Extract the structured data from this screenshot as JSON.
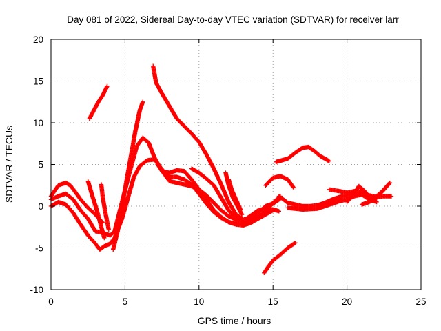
{
  "chart_data": {
    "type": "scatter",
    "title": "Day 081 of 2022, Sidereal Day-to-day VTEC variation (SDTVAR) for receiver larr",
    "xlabel": "GPS time / hours",
    "ylabel": "SDTVAR / TECUs",
    "xlim": [
      0,
      25
    ],
    "ylim": [
      -10,
      20
    ],
    "xticks": [
      0,
      5,
      10,
      15,
      20,
      25
    ],
    "yticks": [
      -10,
      -5,
      0,
      5,
      10,
      15,
      20
    ],
    "xtick_labels": [
      "0",
      "5",
      "10",
      "15",
      "20",
      "25"
    ],
    "ytick_labels": [
      "-10",
      "-5",
      "0",
      "5",
      "10",
      "15",
      "20"
    ],
    "grid": true,
    "marker": "+",
    "color": "#ff0000",
    "series": [
      {
        "name": "s1",
        "points": [
          [
            0.0,
            0.8
          ],
          [
            0.5,
            1.2
          ],
          [
            1.0,
            1.5
          ],
          [
            1.5,
            0.8
          ],
          [
            2.0,
            -0.5
          ],
          [
            2.5,
            -1.5
          ],
          [
            3.0,
            -3.0
          ],
          [
            3.5,
            -3.2
          ],
          [
            4.0,
            -3.5
          ],
          [
            4.3,
            -3.0
          ],
          [
            4.8,
            0.5
          ],
          [
            5.3,
            4.0
          ],
          [
            5.8,
            7.2
          ],
          [
            6.2,
            8.2
          ],
          [
            6.6,
            7.6
          ],
          [
            7.0,
            5.8
          ],
          [
            7.5,
            4.2
          ],
          [
            8.0,
            4.0
          ],
          [
            8.5,
            4.3
          ],
          [
            9.0,
            4.2
          ],
          [
            9.5,
            3.2
          ],
          [
            10.0,
            2.0
          ],
          [
            10.5,
            0.8
          ],
          [
            11.0,
            -0.5
          ],
          [
            11.5,
            -1.3
          ],
          [
            12.0,
            -1.9
          ],
          [
            12.5,
            -2.1
          ],
          [
            13.0,
            -2.1
          ],
          [
            13.5,
            -1.8
          ],
          [
            14.0,
            -1.4
          ]
        ]
      },
      {
        "name": "s2",
        "points": [
          [
            0.0,
            0.0
          ],
          [
            0.5,
            0.5
          ],
          [
            1.0,
            0.2
          ],
          [
            1.5,
            -0.8
          ],
          [
            2.0,
            -2.2
          ],
          [
            2.5,
            -3.5
          ],
          [
            3.0,
            -4.5
          ],
          [
            3.3,
            -5.2
          ],
          [
            3.6,
            -4.8
          ],
          [
            4.0,
            -4.5
          ],
          [
            4.3,
            -3.8
          ],
          [
            4.8,
            -1.5
          ],
          [
            5.2,
            1.0
          ],
          [
            5.6,
            3.5
          ],
          [
            6.0,
            4.8
          ],
          [
            6.5,
            5.5
          ],
          [
            7.0,
            5.6
          ],
          [
            7.5,
            4.4
          ],
          [
            8.0,
            3.5
          ],
          [
            8.5,
            3.5
          ],
          [
            9.0,
            3.2
          ],
          [
            9.5,
            2.6
          ],
          [
            10.0,
            1.5
          ],
          [
            10.5,
            0.3
          ],
          [
            11.0,
            -0.7
          ],
          [
            11.5,
            -1.4
          ],
          [
            12.0,
            -1.9
          ],
          [
            12.5,
            -2.2
          ],
          [
            13.0,
            -2.3
          ],
          [
            13.5,
            -2.0
          ],
          [
            14.0,
            -1.5
          ],
          [
            14.5,
            -1.0
          ],
          [
            15.0,
            -0.5
          ]
        ]
      },
      {
        "name": "s3",
        "points": [
          [
            4.2,
            -5.2
          ],
          [
            4.5,
            -3.0
          ],
          [
            4.8,
            0.0
          ],
          [
            5.1,
            3.0
          ],
          [
            5.4,
            6.0
          ],
          [
            5.7,
            9.0
          ],
          [
            6.0,
            11.5
          ],
          [
            6.2,
            12.5
          ]
        ]
      },
      {
        "name": "s4",
        "points": [
          [
            2.6,
            10.5
          ],
          [
            2.9,
            11.5
          ],
          [
            3.2,
            12.5
          ],
          [
            3.5,
            13.3
          ],
          [
            3.8,
            14.4
          ]
        ]
      },
      {
        "name": "s5",
        "points": [
          [
            6.9,
            16.8
          ],
          [
            7.1,
            14.8
          ],
          [
            7.5,
            13.5
          ],
          [
            8.0,
            12.0
          ],
          [
            8.5,
            10.5
          ],
          [
            9.0,
            9.6
          ],
          [
            9.5,
            8.7
          ],
          [
            10.0,
            7.7
          ],
          [
            10.5,
            6.2
          ],
          [
            11.0,
            4.5
          ],
          [
            11.5,
            2.6
          ],
          [
            12.0,
            0.5
          ],
          [
            12.5,
            -1.0
          ],
          [
            13.0,
            -1.6
          ],
          [
            13.5,
            -1.5
          ]
        ]
      },
      {
        "name": "s6",
        "points": [
          [
            7.2,
            5.0
          ],
          [
            7.6,
            4.0
          ],
          [
            8.0,
            3.0
          ],
          [
            8.5,
            2.8
          ],
          [
            9.0,
            2.6
          ],
          [
            9.5,
            2.4
          ],
          [
            10.0,
            2.0
          ],
          [
            10.5,
            1.3
          ],
          [
            11.0,
            0.4
          ],
          [
            11.5,
            -0.5
          ],
          [
            12.0,
            -1.2
          ],
          [
            12.5,
            -1.6
          ],
          [
            13.0,
            -1.8
          ],
          [
            13.5,
            -1.6
          ],
          [
            14.0,
            -1.3
          ],
          [
            14.5,
            -0.6
          ],
          [
            15.0,
            0.4
          ],
          [
            15.5,
            1.2
          ]
        ]
      },
      {
        "name": "s7",
        "points": [
          [
            9.5,
            4.5
          ],
          [
            10.0,
            4.0
          ],
          [
            10.5,
            3.3
          ],
          [
            11.0,
            2.5
          ],
          [
            11.5,
            1.0
          ],
          [
            12.0,
            -0.5
          ],
          [
            12.5,
            -1.5
          ],
          [
            13.0,
            -1.7
          ],
          [
            13.5,
            -1.4
          ],
          [
            14.0,
            -0.8
          ],
          [
            14.5,
            0.0
          ],
          [
            15.0,
            0.3
          ],
          [
            15.5,
            0.9
          ]
        ]
      },
      {
        "name": "s8",
        "points": [
          [
            0.0,
            1.2
          ],
          [
            0.5,
            2.5
          ],
          [
            1.0,
            2.8
          ],
          [
            1.3,
            2.5
          ],
          [
            1.6,
            1.8
          ],
          [
            2.0,
            0.8
          ],
          [
            2.5,
            -0.2
          ],
          [
            3.0,
            -1.0
          ],
          [
            3.5,
            -2.0
          ]
        ]
      },
      {
        "name": "s9",
        "points": [
          [
            2.5,
            3.0
          ],
          [
            2.8,
            1.2
          ],
          [
            3.1,
            -0.5
          ],
          [
            3.4,
            -2.5
          ],
          [
            3.6,
            -3.8
          ]
        ]
      },
      {
        "name": "s10",
        "points": [
          [
            3.4,
            2.6
          ],
          [
            3.5,
            1.0
          ],
          [
            3.7,
            -1.0
          ],
          [
            3.9,
            -2.8
          ]
        ]
      },
      {
        "name": "s11",
        "points": [
          [
            11.8,
            4.0
          ],
          [
            12.0,
            2.5
          ],
          [
            12.3,
            1.0
          ],
          [
            12.6,
            0.0
          ],
          [
            12.9,
            -1.0
          ]
        ]
      },
      {
        "name": "s12",
        "points": [
          [
            12.0,
            3.2
          ],
          [
            12.2,
            2.0
          ],
          [
            12.5,
            0.8
          ],
          [
            12.8,
            -0.4
          ]
        ]
      },
      {
        "name": "s13",
        "points": [
          [
            13.2,
            -1.5
          ],
          [
            13.6,
            -1.0
          ],
          [
            14.0,
            -0.5
          ],
          [
            14.5,
            -0.3
          ],
          [
            15.0,
            -0.4
          ],
          [
            15.4,
            -0.6
          ]
        ]
      },
      {
        "name": "s14",
        "points": [
          [
            14.5,
            2.5
          ],
          [
            15.0,
            3.4
          ],
          [
            15.5,
            3.6
          ],
          [
            16.0,
            3.2
          ],
          [
            16.4,
            2.2
          ]
        ]
      },
      {
        "name": "s15",
        "points": [
          [
            15.2,
            5.3
          ],
          [
            15.6,
            5.5
          ],
          [
            16.0,
            5.7
          ],
          [
            16.5,
            6.4
          ],
          [
            17.0,
            7.0
          ],
          [
            17.4,
            7.1
          ],
          [
            17.8,
            6.6
          ],
          [
            18.2,
            6.0
          ],
          [
            18.6,
            5.6
          ],
          [
            18.8,
            5.4
          ]
        ]
      },
      {
        "name": "s16",
        "points": [
          [
            14.4,
            -8.0
          ],
          [
            14.7,
            -7.2
          ],
          [
            15.0,
            -6.5
          ],
          [
            15.5,
            -5.8
          ],
          [
            16.0,
            -5.0
          ],
          [
            16.5,
            -4.4
          ]
        ]
      },
      {
        "name": "s17",
        "points": [
          [
            15.4,
            1.2
          ],
          [
            16.0,
            0.4
          ],
          [
            16.5,
            0.2
          ],
          [
            17.0,
            0.0
          ],
          [
            17.5,
            0.0
          ],
          [
            18.0,
            0.1
          ],
          [
            18.5,
            0.4
          ],
          [
            19.0,
            0.8
          ],
          [
            19.5,
            1.1
          ],
          [
            20.0,
            1.3
          ],
          [
            20.5,
            1.5
          ],
          [
            21.0,
            1.6
          ],
          [
            21.5,
            1.3
          ],
          [
            22.0,
            1.1
          ],
          [
            22.5,
            1.2
          ],
          [
            23.0,
            1.2
          ]
        ]
      },
      {
        "name": "s18",
        "points": [
          [
            16.0,
            -0.2
          ],
          [
            17.0,
            -0.4
          ],
          [
            18.0,
            -0.3
          ],
          [
            18.5,
            0.0
          ],
          [
            19.0,
            0.3
          ],
          [
            19.5,
            0.6
          ],
          [
            20.0,
            0.8
          ],
          [
            20.5,
            1.2
          ],
          [
            21.0,
            1.4
          ],
          [
            21.5,
            0.8
          ],
          [
            22.0,
            0.5
          ]
        ]
      },
      {
        "name": "s19",
        "points": [
          [
            18.8,
            2.0
          ],
          [
            19.5,
            1.8
          ],
          [
            20.0,
            1.6
          ],
          [
            20.5,
            1.8
          ],
          [
            21.0,
            1.7
          ],
          [
            21.5,
            1.2
          ]
        ]
      },
      {
        "name": "s20",
        "points": [
          [
            20.0,
            0.5
          ],
          [
            20.5,
            1.5
          ],
          [
            20.8,
            2.4
          ],
          [
            21.2,
            1.8
          ],
          [
            21.6,
            0.8
          ],
          [
            22.0,
            1.2
          ],
          [
            22.4,
            1.8
          ],
          [
            22.8,
            2.6
          ]
        ]
      },
      {
        "name": "s21",
        "points": [
          [
            21.0,
            0.2
          ],
          [
            21.5,
            0.5
          ],
          [
            22.0,
            1.0
          ],
          [
            22.5,
            2.0
          ],
          [
            22.9,
            2.8
          ]
        ]
      }
    ]
  }
}
